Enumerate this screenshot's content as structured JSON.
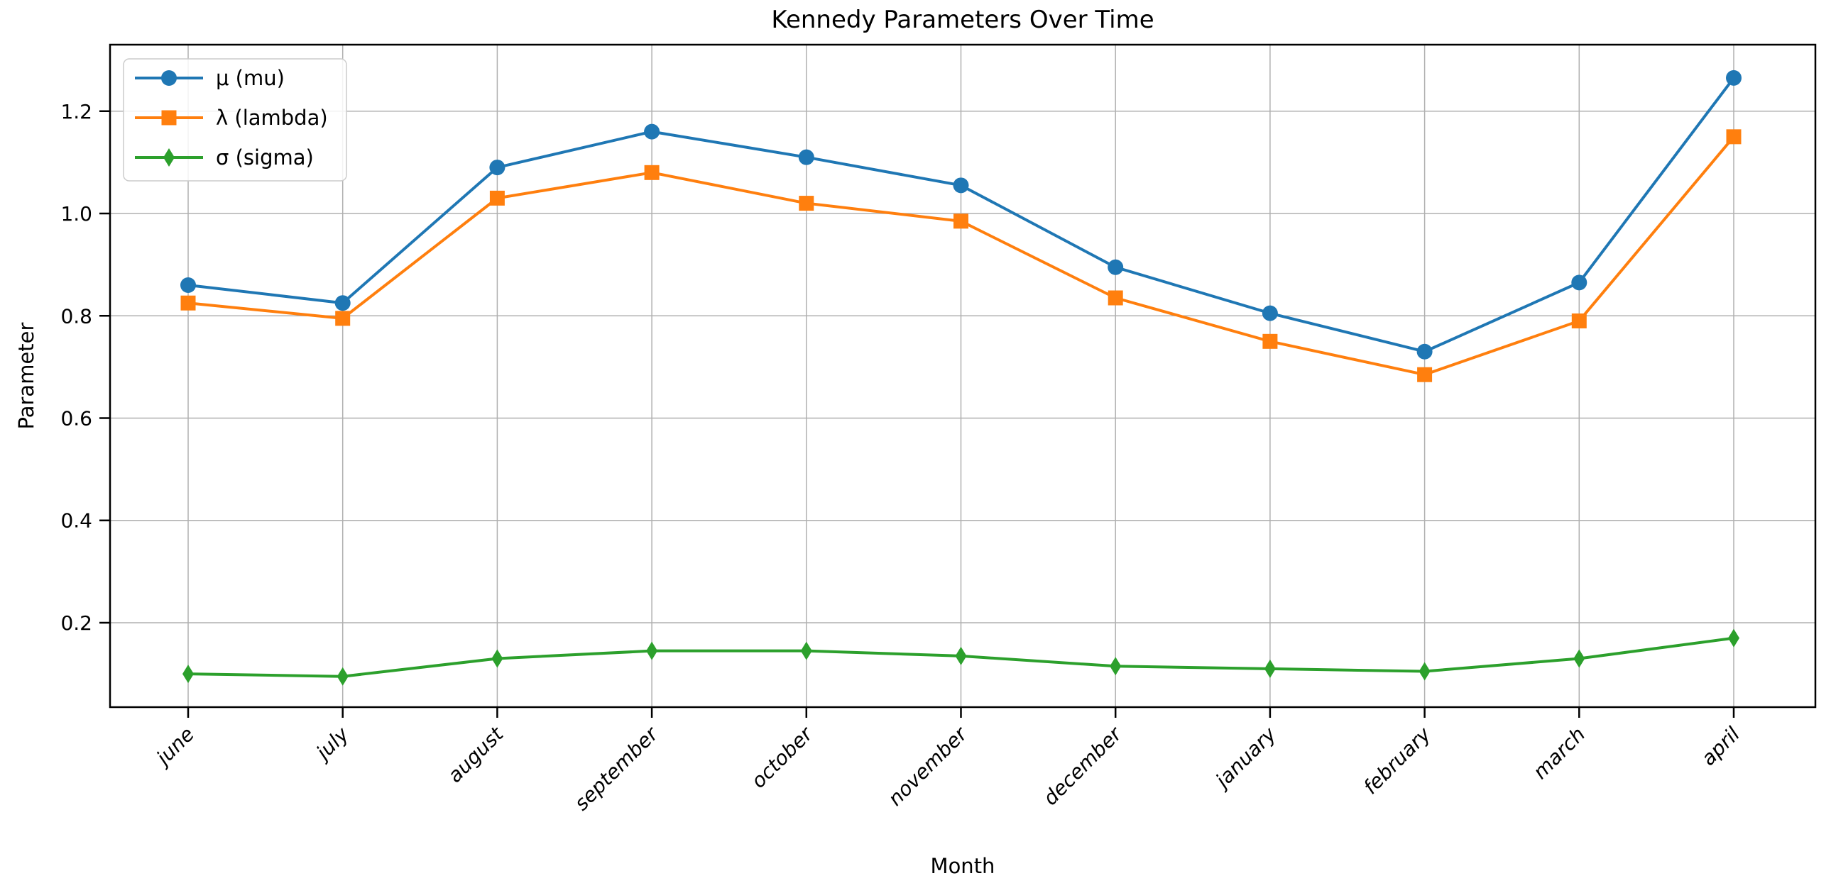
{
  "chart_data": {
    "type": "line",
    "title": "Kennedy Parameters Over Time",
    "xlabel": "Month",
    "ylabel": "Parameter",
    "categories": [
      "june",
      "july",
      "august",
      "september",
      "october",
      "november",
      "december",
      "january",
      "february",
      "march",
      "april"
    ],
    "series": [
      {
        "name": "μ (mu)",
        "marker": "circle",
        "color": "#1f77b4",
        "values": [
          0.86,
          0.825,
          1.09,
          1.16,
          1.11,
          1.055,
          0.895,
          0.805,
          0.73,
          0.865,
          1.265
        ]
      },
      {
        "name": "λ (lambda)",
        "marker": "square",
        "color": "#ff7f0e",
        "values": [
          0.825,
          0.795,
          1.03,
          1.08,
          1.02,
          0.985,
          0.835,
          0.75,
          0.685,
          0.79,
          1.15
        ]
      },
      {
        "name": "σ (sigma)",
        "marker": "diamond",
        "color": "#2ca02c",
        "values": [
          0.1,
          0.095,
          0.13,
          0.145,
          0.145,
          0.135,
          0.115,
          0.11,
          0.105,
          0.13,
          0.17
        ]
      }
    ],
    "yticks": [
      0.2,
      0.4,
      0.6,
      0.8,
      1.0,
      1.2
    ],
    "ylim": [
      0.035,
      1.33
    ],
    "grid": true,
    "legend_position": "upper left",
    "x_tick_rotation": 45,
    "x_tick_style": "italic"
  },
  "colors": {
    "background": "#ffffff",
    "grid": "#b0b0b0",
    "axis": "#000000",
    "text": "#000000",
    "legend_border": "#cccccc"
  }
}
